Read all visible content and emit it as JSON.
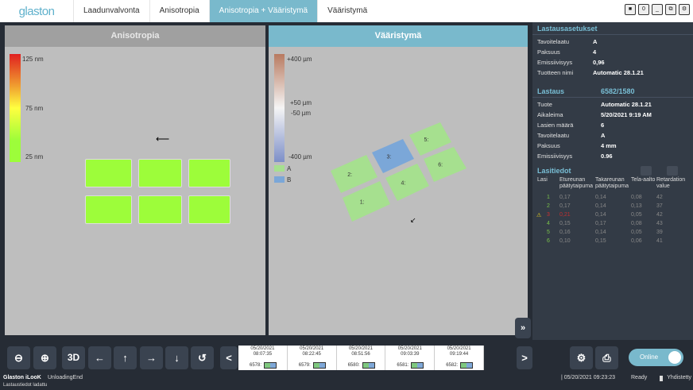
{
  "nav": {
    "logo": "glaston",
    "tabs": [
      "Laadunvalvonta",
      "Anisotropia",
      "Anisotropia + Vääristymä",
      "Vääristymä"
    ],
    "active_tab": 2,
    "window_buttons": [
      "■",
      "0",
      "_",
      "⧉",
      "⚙"
    ]
  },
  "aniso": {
    "title": "Anisotropia",
    "scale": [
      "125 nm",
      "75 nm",
      "25 nm"
    ],
    "glass_color": "#9dfd3a"
  },
  "distortion": {
    "title": "Vääristymä",
    "scale": [
      "+400 µm",
      "+50 µm",
      "-50 µm",
      "-400 µm"
    ],
    "legend": [
      {
        "label": "A",
        "color": "#a6e08f"
      },
      {
        "label": "B",
        "color": "#7ba7d8"
      }
    ],
    "glasses": [
      "1:",
      "2:",
      "3:",
      "4:",
      "5:",
      "6:"
    ]
  },
  "settings": {
    "title": "Lastausasetukset",
    "rows": [
      [
        "Tavoitelaatu",
        "A"
      ],
      [
        "Paksuus",
        "4"
      ],
      [
        "Emissiivisyys",
        "0,96"
      ],
      [
        "Tuotteen nimi",
        "Automatic 28.1.21"
      ]
    ]
  },
  "loading": {
    "title": "Lastaus",
    "id": "6582/1580",
    "rows": [
      [
        "Tuote",
        "Automatic 28.1.21"
      ],
      [
        "Aikaleima",
        "5/20/2021 9:19 AM"
      ],
      [
        "Lasien määrä",
        "6"
      ],
      [
        "Tavoitelaatu",
        "A"
      ],
      [
        "Paksuus",
        "4   mm"
      ],
      [
        "Emissiivisyys",
        "0.96"
      ]
    ]
  },
  "glassinfo": {
    "title": "Lasitiedot",
    "headers": [
      "Lasi",
      "Etureunan päätytaipuma",
      "Takareunan päätytaipuma",
      "Tela-aalto",
      "Retardation value"
    ],
    "rows": [
      [
        "1",
        "0,17",
        "0,14",
        "0,08",
        "42"
      ],
      [
        "2",
        "0,17",
        "0,14",
        "0,13",
        "37"
      ],
      [
        "3",
        "0,21",
        "0,14",
        "0,05",
        "42"
      ],
      [
        "4",
        "0,15",
        "0,17",
        "0,08",
        "43"
      ],
      [
        "5",
        "0,16",
        "0,14",
        "0,05",
        "39"
      ],
      [
        "6",
        "0,10",
        "0,15",
        "0,06",
        "41"
      ]
    ],
    "warning_row": 2
  },
  "toolbar": {
    "threed": "3D",
    "prev": "<",
    "next": ">",
    "expand": "»",
    "online": "Online"
  },
  "timeline": [
    {
      "date": "05/20/2021",
      "time": "08:07:35",
      "id": "6578:"
    },
    {
      "date": "05/20/2021",
      "time": "08:22:45",
      "id": "6579:"
    },
    {
      "date": "05/20/2021",
      "time": "08:51:56",
      "id": "6580:"
    },
    {
      "date": "05/20/2021",
      "time": "09:03:39",
      "id": "6581:"
    },
    {
      "date": "05/20/2021",
      "time": "09:19:44",
      "id": "6582:"
    }
  ],
  "status": {
    "app": "Glaston iLooK",
    "state": "UnloadingEnd",
    "message": "Lastaustiedot ladattu",
    "datetime": "| 05/20/2021 09:23:23",
    "ready": "Ready",
    "connected": "Yhdistetty"
  }
}
